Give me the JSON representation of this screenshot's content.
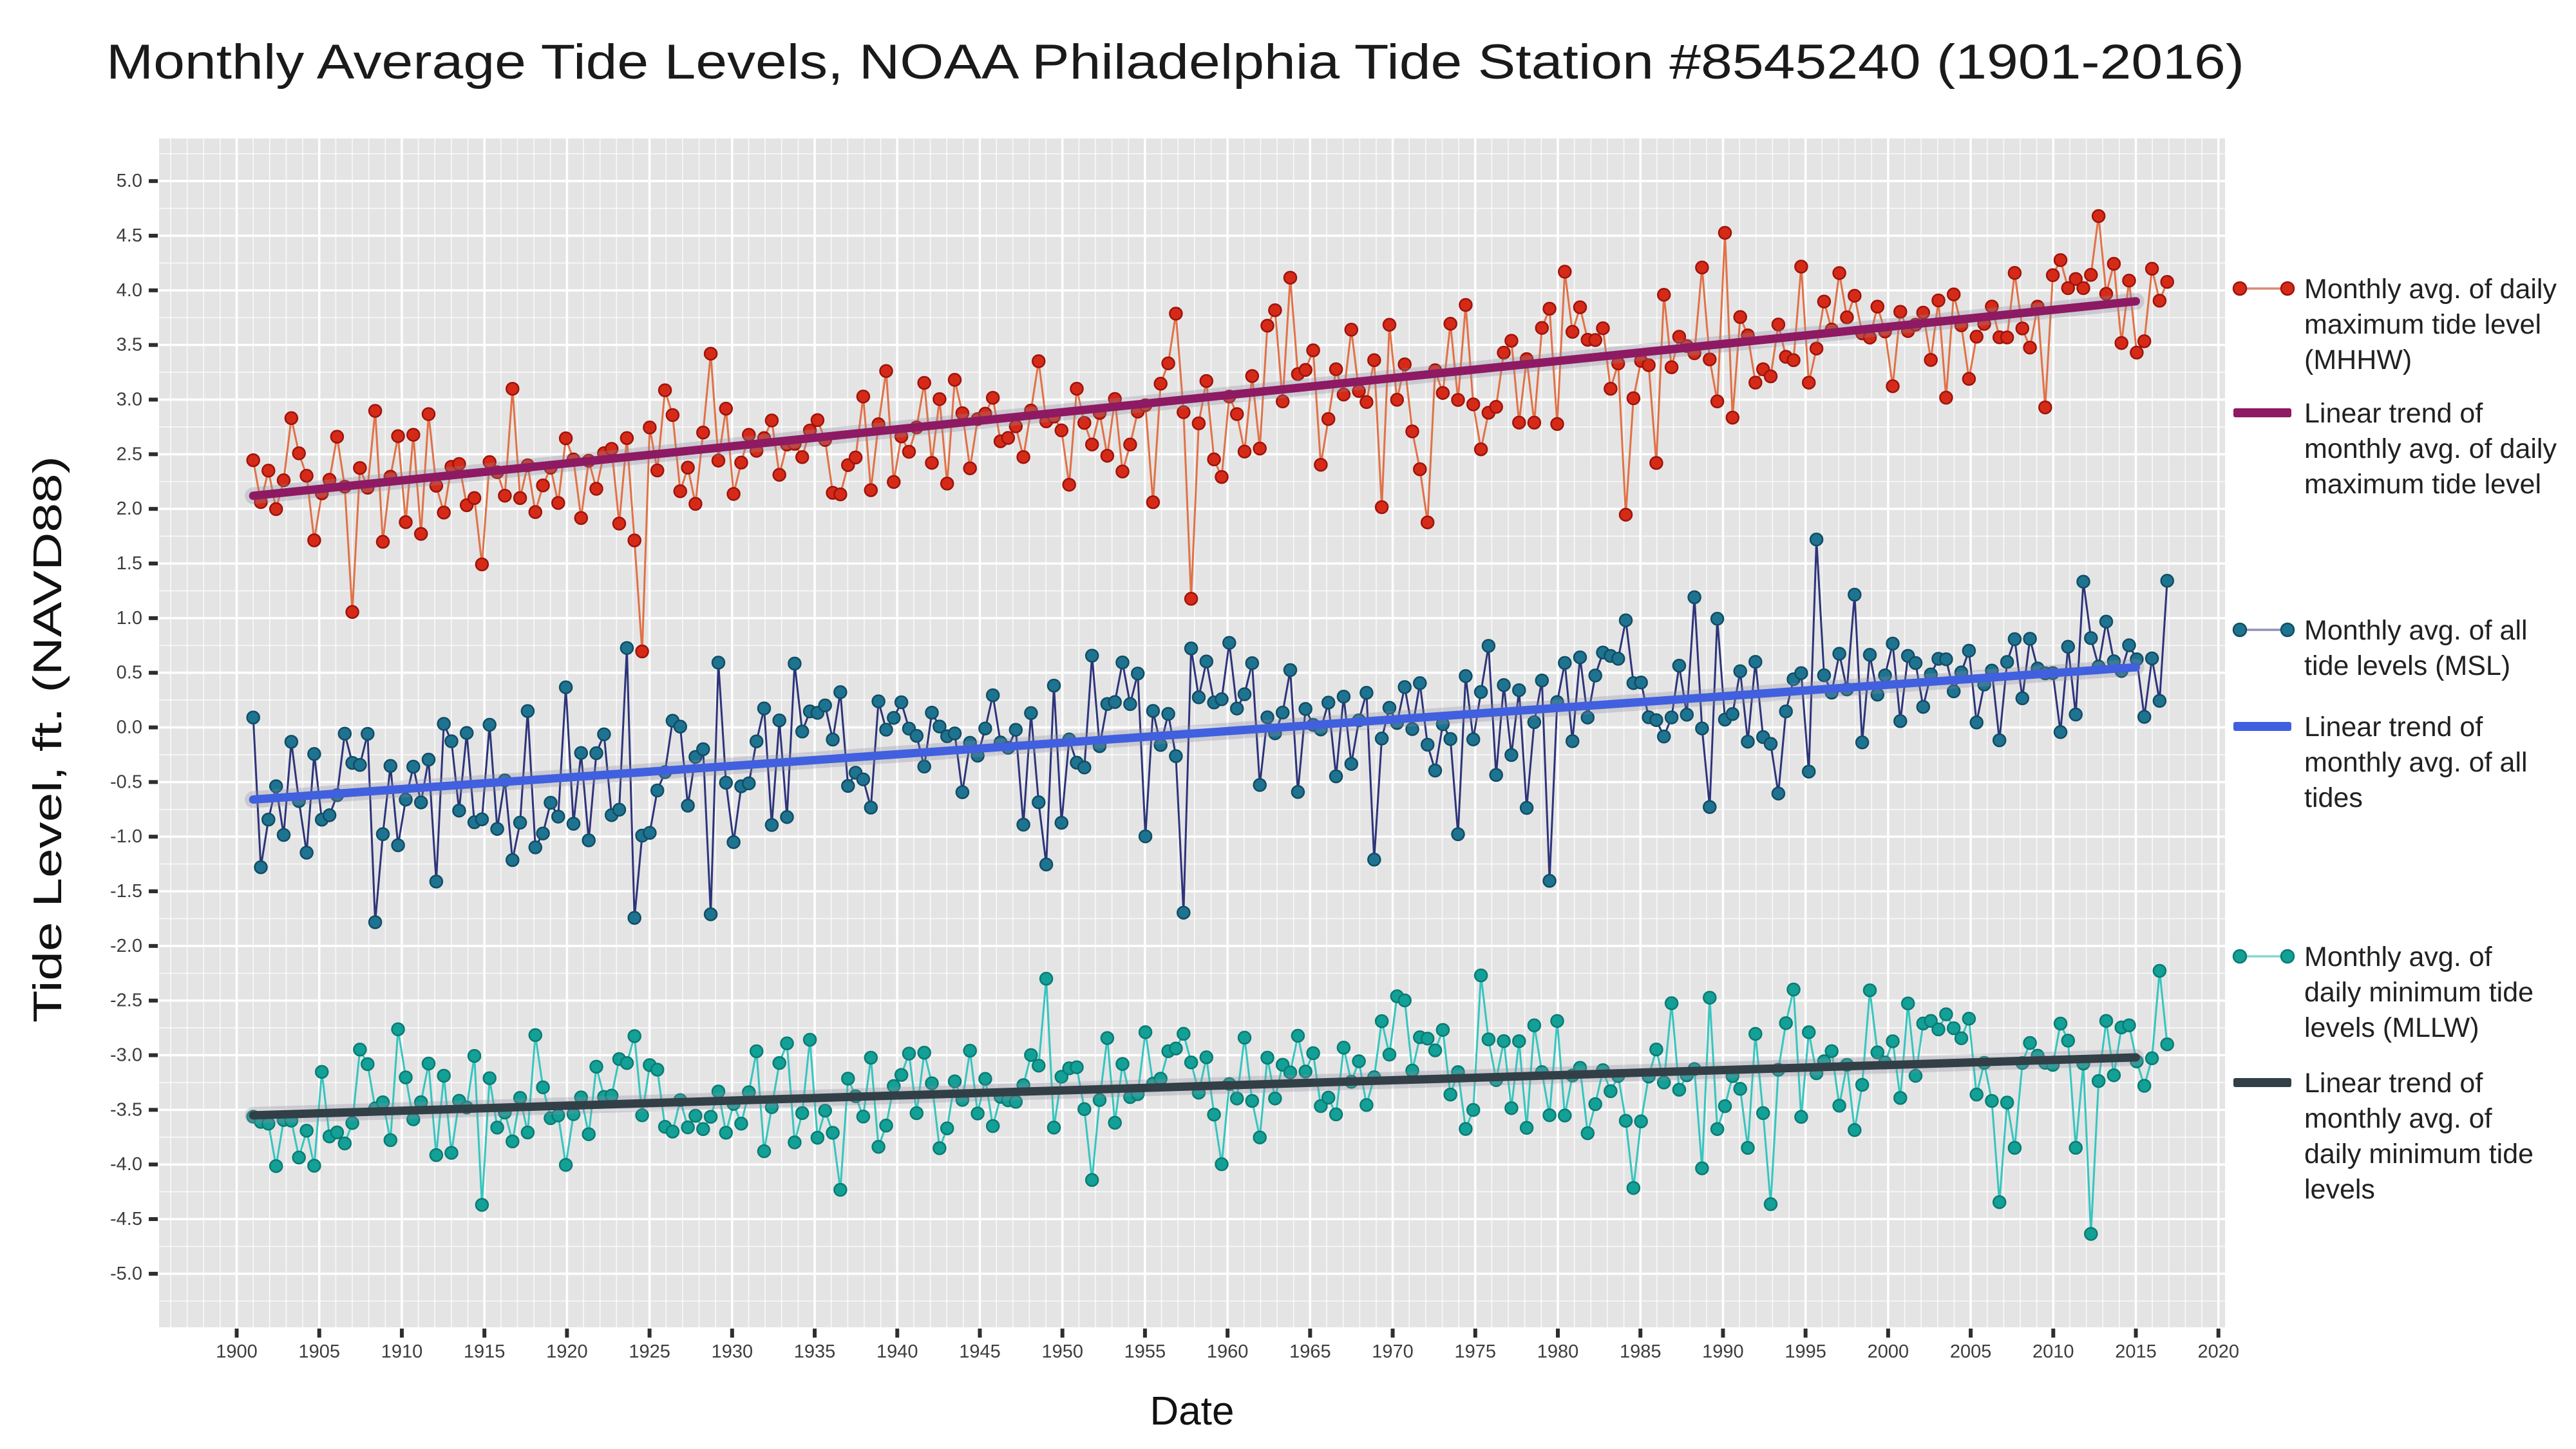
{
  "title": "Monthly Average Tide Levels, NOAA Philadelphia Tide Station #8545240 (1901-2016)",
  "chart_data": {
    "type": "scatter",
    "title": "Monthly Average Tide Levels, NOAA Philadelphia Tide Station #8545240 (1901-2016)",
    "xlabel": "Date",
    "ylabel": "Tide Level, ft. (NAVD88)",
    "xlim": [
      1895.3,
      2020.4
    ],
    "ylim": [
      -5.49,
      5.39
    ],
    "x_ticks": [
      1900,
      1905,
      1910,
      1915,
      1920,
      1925,
      1930,
      1935,
      1940,
      1945,
      1950,
      1955,
      1960,
      1965,
      1970,
      1975,
      1980,
      1985,
      1990,
      1995,
      2000,
      2005,
      2010,
      2015,
      2020
    ],
    "y_ticks": [
      5.0,
      4.5,
      4.0,
      3.5,
      3.0,
      2.5,
      2.0,
      1.5,
      1.0,
      0.5,
      0.0,
      -0.5,
      -1.0,
      -1.5,
      -2.0,
      -2.5,
      -3.0,
      -3.5,
      -4.0,
      -4.5,
      -5.0
    ],
    "grid": {
      "background": "#e4e4e4",
      "major_color": "#ffffff",
      "minor_color": "#ffffff",
      "x_minor_step_years": 1,
      "y_minor_step": 0.25,
      "tick_color": "#2e2e2e",
      "tick_label_color": "#3d3d3d"
    },
    "data_x_start": 1901.0,
    "data_x_end": 2016.9,
    "points_per_series": 252,
    "series": [
      {
        "id": "mhhw",
        "label": "Monthly avg. of daily maximum tide level (MHHW)",
        "marker_color": "#d62a18",
        "marker_edge": "#9e130b",
        "connector_color": "#e06a3e",
        "gen": {
          "seed": 101,
          "sd": 0.3,
          "season_amp": 0.28,
          "phase": 0.6,
          "p_low": 0.05,
          "low_base": 0.5,
          "low_extra": 1.2,
          "p_high": 0.015,
          "high_base": 0.3,
          "high_extra": 0.45,
          "min": 0.2,
          "max": 4.68
        },
        "trend": {
          "label": "Linear trend of monthly avg. of daily maximum tide level",
          "color": "#8d1a63",
          "x_start": 1901.0,
          "x_end": 2015.0,
          "y_start": 2.12,
          "y_end": 3.9
        }
      },
      {
        "id": "msl",
        "label": "Monthly avg. of all tide levels (MSL)",
        "marker_color": "#1e7391",
        "marker_edge": "#114d63",
        "connector_color": "#232a74",
        "gen": {
          "seed": 202,
          "sd": 0.32,
          "season_amp": 0.26,
          "phase": 2.1,
          "p_low": 0.04,
          "low_base": 0.4,
          "low_extra": 0.95,
          "p_high": 0.02,
          "high_base": 0.35,
          "high_extra": 0.5,
          "min": -2.25,
          "max": 1.72
        },
        "trend": {
          "label": "Linear trend of monthly avg. of all tides",
          "color": "#4060df",
          "x_start": 1901.0,
          "x_end": 2015.0,
          "y_start": -0.66,
          "y_end": 0.55
        }
      },
      {
        "id": "mllw",
        "label": "Monthly avg. of daily minimum tide levels (MLLW)",
        "marker_color": "#13a096",
        "marker_edge": "#0a7b74",
        "connector_color": "#2cc3bd",
        "gen": {
          "seed": 303,
          "sd": 0.28,
          "season_amp": 0.22,
          "phase": 4.0,
          "p_low": 0.045,
          "low_base": 0.4,
          "low_extra": 0.95,
          "p_high": 0.02,
          "high_base": 0.3,
          "high_extra": 0.4,
          "min": -4.88,
          "max": -2.02
        },
        "trend": {
          "label": "Linear trend of monthly avg. of daily minimum tide levels",
          "color": "#323f46",
          "x_start": 1901.0,
          "x_end": 2015.0,
          "y_start": -3.55,
          "y_end": -3.02
        }
      }
    ]
  },
  "legend": {
    "text_color": "#212121",
    "entries": [
      {
        "name": "legend-mhhw-points",
        "symbol": "points",
        "series": "mhhw",
        "y": 448,
        "dot_color": "#d62a18",
        "dot_edge": "#9e130b",
        "link_color": "#dc8874",
        "lines": [
          "Monthly avg. of daily",
          "maximum tide level",
          "(MHHW)"
        ]
      },
      {
        "name": "legend-mhhw-trend",
        "symbol": "line",
        "series": "mhhw",
        "y": 641,
        "color": "#8d1a63",
        "lines": [
          "Linear trend of",
          "monthly avg. of daily",
          "maximum tide level"
        ]
      },
      {
        "name": "legend-msl-points",
        "symbol": "points",
        "series": "msl",
        "y": 978,
        "dot_color": "#1e7391",
        "dot_edge": "#114d63",
        "link_color": "#9191b8",
        "lines": [
          "Monthly avg. of all",
          "tide levels (MSL)"
        ]
      },
      {
        "name": "legend-msl-trend",
        "symbol": "line",
        "series": "msl",
        "y": 1128,
        "color": "#4060df",
        "lines": [
          "Linear trend of",
          "monthly avg. of all",
          "tides"
        ]
      },
      {
        "name": "legend-mllw-points",
        "symbol": "points",
        "series": "mllw",
        "y": 1485,
        "dot_color": "#13a096",
        "dot_edge": "#0a7b74",
        "link_color": "#86d8d4",
        "lines": [
          "Monthly avg. of",
          "daily minimum tide",
          "levels (MLLW)"
        ]
      },
      {
        "name": "legend-mllw-trend",
        "symbol": "line",
        "series": "mllw",
        "y": 1681,
        "color": "#323f46",
        "lines": [
          "Linear trend of",
          "monthly avg. of",
          "daily minimum tide",
          "levels"
        ]
      }
    ]
  }
}
